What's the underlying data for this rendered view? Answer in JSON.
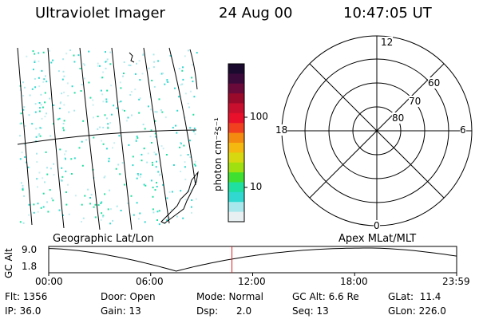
{
  "header": {
    "instrument": "Ultraviolet Imager",
    "date": "24 Aug 00",
    "time": "10:47:05 UT"
  },
  "colorbar": {
    "unit_label": "photon cm⁻²s⁻¹",
    "tick_labels": [
      "100",
      "10"
    ],
    "colors": [
      "#1a0a2e",
      "#3a0a3a",
      "#6a0a3a",
      "#9a0a2a",
      "#c8102e",
      "#e8102a",
      "#f04020",
      "#f58a10",
      "#f5b810",
      "#d8d810",
      "#a0e010",
      "#40e030",
      "#20e0a0",
      "#30d8d0",
      "#a8e8ec",
      "#e8f0f2"
    ]
  },
  "polar_plot": {
    "mlt_labels": {
      "top": "12",
      "bottom": "0",
      "left": "18",
      "right": "6"
    },
    "lat_labels": [
      "60",
      "70",
      "80"
    ]
  },
  "orbit_plot": {
    "ylabel": "GC Alt",
    "y_ticks": [
      "9.0",
      "1.8"
    ],
    "left_title": "Geographic Lat/Lon",
    "right_title": "Apex MLat/MLT",
    "x_ticks": [
      "00:00",
      "06:00",
      "12:00",
      "18:00",
      "23:59"
    ],
    "current_time_hours": 10.78,
    "marker_color": "#e02020"
  },
  "info": {
    "flt": "Flt: 1356",
    "ip": "IP: 36.0",
    "door": "Door: Open",
    "gain": "Gain: 13",
    "mode": "Mode: Normal",
    "dsp": "Dsp:      2.0",
    "gcalt": "GC Alt: 6.6 Re",
    "seq": "Seq: 13",
    "glat": "GLat:  11.4",
    "glon": "GLon: 226.0"
  }
}
